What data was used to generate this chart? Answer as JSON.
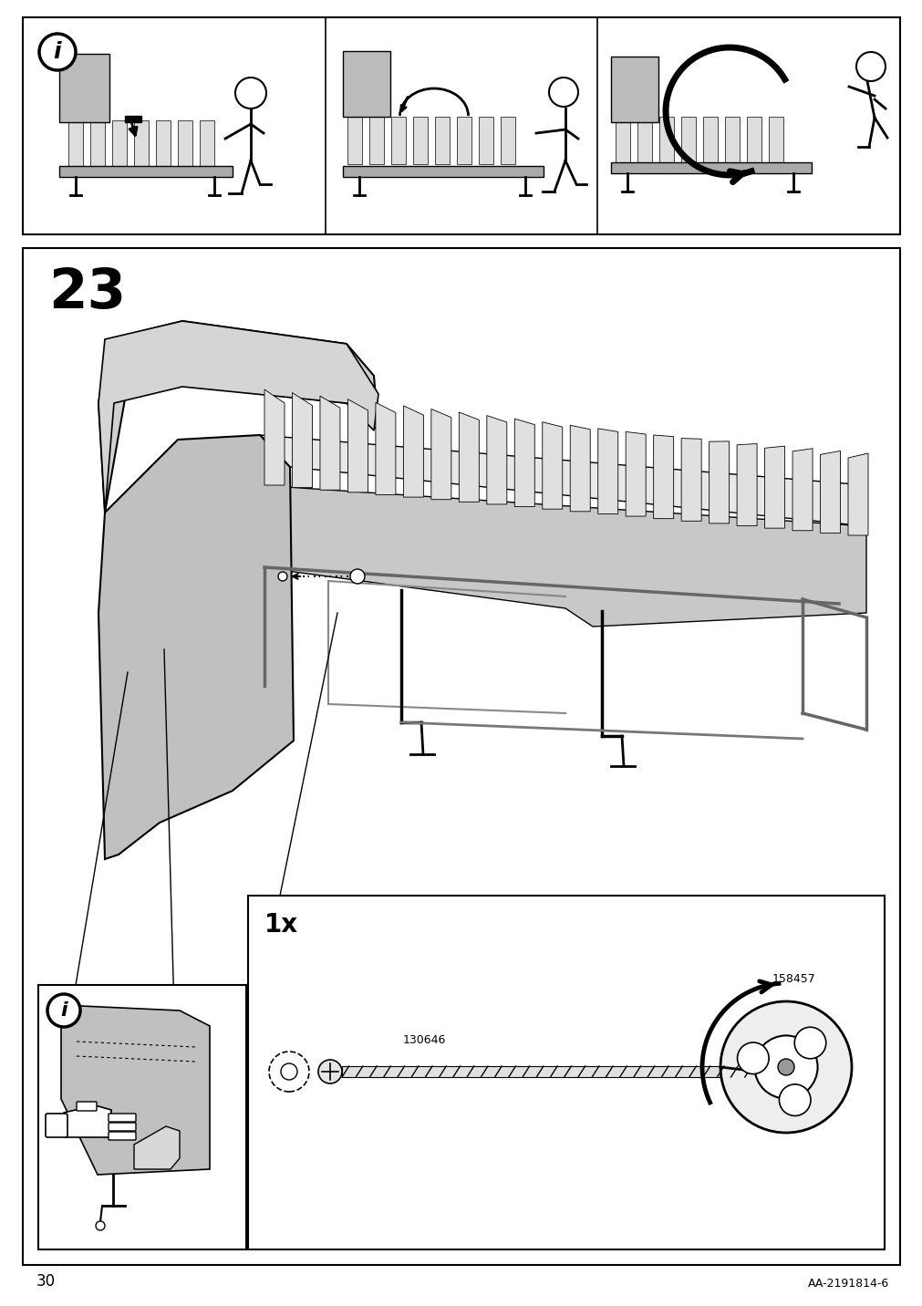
{
  "page_number": "30",
  "document_code": "AA-2191814-6",
  "step_number": "23",
  "bg_color": "#ffffff",
  "border_color": "#000000",
  "gray_color": "#b0b0b0",
  "light_gray": "#d0d0d0",
  "dark_gray": "#808080",
  "part_numbers": [
    "130646",
    "158457"
  ],
  "quantity_label": "1x"
}
